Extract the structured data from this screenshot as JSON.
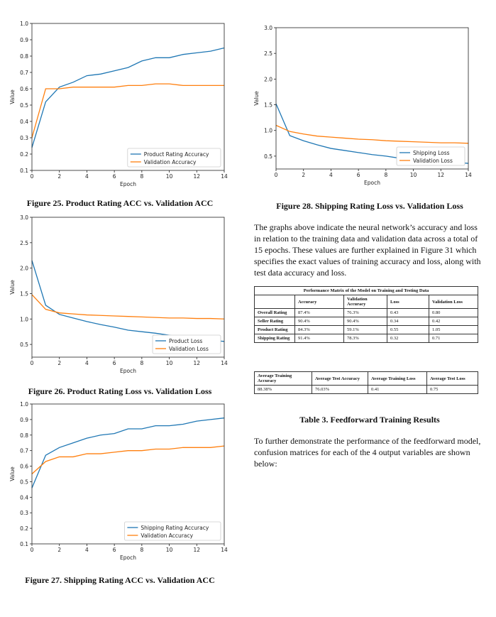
{
  "charts": [
    {
      "id": "fig25",
      "chart_data": {
        "type": "line",
        "xlabel": "Epoch",
        "ylabel": "Value",
        "xlim": [
          0,
          14
        ],
        "ylim": [
          0.1,
          1.0
        ],
        "xticks": [
          0,
          2,
          4,
          6,
          8,
          10,
          12,
          14
        ],
        "yticks": [
          0.1,
          0.2,
          0.3,
          0.4,
          0.5,
          0.6,
          0.7,
          0.8,
          0.9,
          1.0
        ],
        "ytick_decimals": 1,
        "legend": "lower-right",
        "x": [
          0,
          1,
          2,
          3,
          4,
          5,
          6,
          7,
          8,
          9,
          10,
          11,
          12,
          13,
          14
        ],
        "series": [
          {
            "name": "Product Rating Accuracy",
            "color": "#1f77b4",
            "values": [
              0.24,
              0.52,
              0.61,
              0.64,
              0.68,
              0.69,
              0.71,
              0.73,
              0.77,
              0.79,
              0.79,
              0.81,
              0.82,
              0.83,
              0.85
            ]
          },
          {
            "name": "Validation Accuracy",
            "color": "#ff7f0e",
            "values": [
              0.3,
              0.6,
              0.6,
              0.61,
              0.61,
              0.61,
              0.61,
              0.62,
              0.62,
              0.63,
              0.63,
              0.62,
              0.62,
              0.62,
              0.62
            ]
          }
        ]
      }
    },
    {
      "id": "fig26",
      "chart_data": {
        "type": "line",
        "xlabel": "Epoch",
        "ylabel": "Value",
        "xlim": [
          0,
          14
        ],
        "ylim": [
          0.25,
          3.0
        ],
        "xticks": [
          0,
          2,
          4,
          6,
          8,
          10,
          12,
          14
        ],
        "yticks": [
          0.5,
          1.0,
          1.5,
          2.0,
          2.5,
          3.0
        ],
        "ytick_decimals": 1,
        "legend": "lower-right",
        "x": [
          0,
          1,
          2,
          3,
          4,
          5,
          6,
          7,
          8,
          9,
          10,
          11,
          12,
          13,
          14
        ],
        "series": [
          {
            "name": "Product Loss",
            "color": "#1f77b4",
            "values": [
              2.15,
              1.27,
              1.09,
              1.02,
              0.95,
              0.89,
              0.84,
              0.78,
              0.75,
              0.72,
              0.68,
              0.64,
              0.61,
              0.58,
              0.56
            ]
          },
          {
            "name": "Validation Loss",
            "color": "#ff7f0e",
            "values": [
              1.48,
              1.19,
              1.12,
              1.1,
              1.08,
              1.07,
              1.06,
              1.05,
              1.04,
              1.03,
              1.02,
              1.02,
              1.01,
              1.01,
              1.0
            ]
          }
        ]
      }
    },
    {
      "id": "fig27",
      "chart_data": {
        "type": "line",
        "xlabel": "Epoch",
        "ylabel": "Value",
        "xlim": [
          0,
          14
        ],
        "ylim": [
          0.1,
          1.0
        ],
        "xticks": [
          0,
          2,
          4,
          6,
          8,
          10,
          12,
          14
        ],
        "yticks": [
          0.1,
          0.2,
          0.3,
          0.4,
          0.5,
          0.6,
          0.7,
          0.8,
          0.9,
          1.0
        ],
        "ytick_decimals": 1,
        "legend": "lower-right",
        "x": [
          0,
          1,
          2,
          3,
          4,
          5,
          6,
          7,
          8,
          9,
          10,
          11,
          12,
          13,
          14
        ],
        "series": [
          {
            "name": "Shipping Rating Accuracy",
            "color": "#1f77b4",
            "values": [
              0.46,
              0.67,
              0.72,
              0.75,
              0.78,
              0.8,
              0.81,
              0.84,
              0.84,
              0.86,
              0.86,
              0.87,
              0.89,
              0.9,
              0.91
            ]
          },
          {
            "name": "Validation Accuracy",
            "color": "#ff7f0e",
            "values": [
              0.55,
              0.63,
              0.66,
              0.66,
              0.68,
              0.68,
              0.69,
              0.7,
              0.7,
              0.71,
              0.71,
              0.72,
              0.72,
              0.72,
              0.73
            ]
          }
        ]
      }
    },
    {
      "id": "fig28",
      "chart_data": {
        "type": "line",
        "xlabel": "Epoch",
        "ylabel": "Value",
        "xlim": [
          0,
          14
        ],
        "ylim": [
          0.25,
          3.0
        ],
        "xticks": [
          0,
          2,
          4,
          6,
          8,
          10,
          12,
          14
        ],
        "yticks": [
          0.5,
          1.0,
          1.5,
          2.0,
          2.5,
          3.0
        ],
        "ytick_decimals": 1,
        "legend": "lower-right",
        "x": [
          0,
          1,
          2,
          3,
          4,
          5,
          6,
          7,
          8,
          9,
          10,
          11,
          12,
          13,
          14
        ],
        "series": [
          {
            "name": "Shipping Loss",
            "color": "#1f77b4",
            "values": [
              1.52,
              0.9,
              0.8,
              0.72,
              0.65,
              0.61,
              0.57,
              0.53,
              0.5,
              0.46,
              0.44,
              0.42,
              0.4,
              0.38,
              0.36
            ]
          },
          {
            "name": "Validation Loss",
            "color": "#ff7f0e",
            "values": [
              1.1,
              0.98,
              0.93,
              0.89,
              0.87,
              0.85,
              0.83,
              0.82,
              0.8,
              0.79,
              0.78,
              0.77,
              0.76,
              0.76,
              0.75
            ]
          }
        ]
      }
    }
  ],
  "captions": {
    "fig25": "Figure 25. Product Rating ACC vs. Validation ACC",
    "fig26": "Figure 26. Product Rating Loss vs. Validation Loss",
    "fig27": "Figure 27. Shipping Rating ACC vs. Validation ACC",
    "fig28": "Figure 28. Shipping Rating Loss vs. Validation Loss",
    "table3": "Table 3. Feedforward Training Results"
  },
  "paragraphs": {
    "p1": "The graphs above indicate the neural network’s accuracy and loss in relation to the training data and validation data across a total of 15 epochs. These values are further explained in Figure 31 which specifies the exact values of training accuracy and loss, along with test data accuracy and loss.",
    "p2": "To further demonstrate the performance of the feedforward model, confusion matrices for each of the 4 output variables are shown below:"
  },
  "table1": {
    "title": "Performance Matrix of the Model on Training and Testing Data",
    "headers": [
      "",
      "Accuracy",
      "Validation Accuracy",
      "Loss",
      "Validation Loss"
    ],
    "rows": [
      [
        "Overall Rating",
        "87.4%",
        "76.3%",
        "0.43",
        "0.80"
      ],
      [
        "Seller Rating",
        "90.4%",
        "90.4%",
        "0.34",
        "0.42"
      ],
      [
        "Product Rating",
        "84.3%",
        "59.1%",
        "0.55",
        "1.05"
      ],
      [
        "Shipping Rating",
        "91.4%",
        "78.3%",
        "0.32",
        "0.71"
      ]
    ]
  },
  "table2": {
    "headers": [
      "Average Training Accuracy",
      "Average Test Accuracy",
      "Average Training Loss",
      "Average Test Loss"
    ],
    "values": [
      "88.38%",
      "76.03%",
      "0.41",
      "0.75"
    ]
  }
}
